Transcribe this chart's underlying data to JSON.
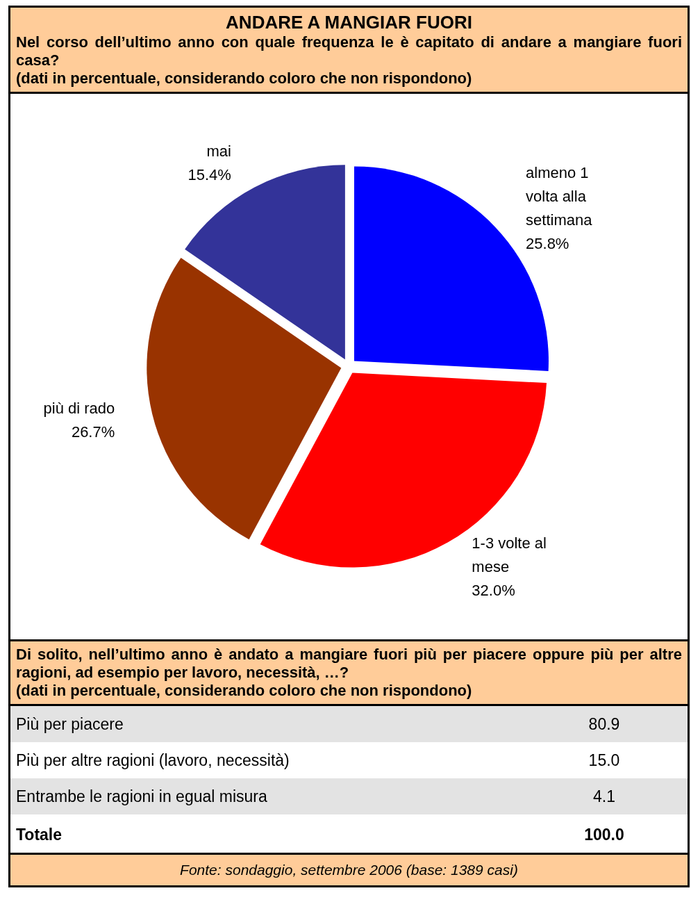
{
  "chart_data": [
    {
      "type": "pie",
      "title": "ANDARE A MANGIAR FUORI",
      "subtitle": "Nel corso dell’ultimo anno con quale frequenza le è capitato di andare a mangiare fuori casa?\n(dati in percentuale, considerando coloro che non rispondono)",
      "categories": [
        "almeno 1 volta alla settimana",
        "1-3 volte al mese",
        "più di rado",
        "mai"
      ],
      "values": [
        25.8,
        32.0,
        26.7,
        15.4
      ],
      "value_labels": [
        "25.8%",
        "32.0%",
        "26.7%",
        "15.4%"
      ],
      "colors": [
        "#0000ff",
        "#ff0000",
        "#993300",
        "#333399"
      ],
      "legend": false
    },
    {
      "type": "other",
      "title": "Di solito, nell’ultimo anno è andato a mangiare fuori più per piacere oppure più per altre ragioni, ad esempio per lavoro, necessità, …?",
      "subtitle": "(dati in percentuale, considerando coloro che non rispondono)",
      "categories": [
        "Più per piacere",
        "Più per altre ragioni (lavoro, necessità)",
        "Entrambe le ragioni in egual misura",
        "Totale"
      ],
      "values": [
        80.9,
        15.0,
        4.1,
        100.0
      ],
      "value_labels": [
        "80.9",
        "15.0",
        "4.1",
        "100.0"
      ],
      "annotations": [
        "Fonte: sondaggio, settembre 2006 (base: 1389 casi)"
      ]
    }
  ]
}
